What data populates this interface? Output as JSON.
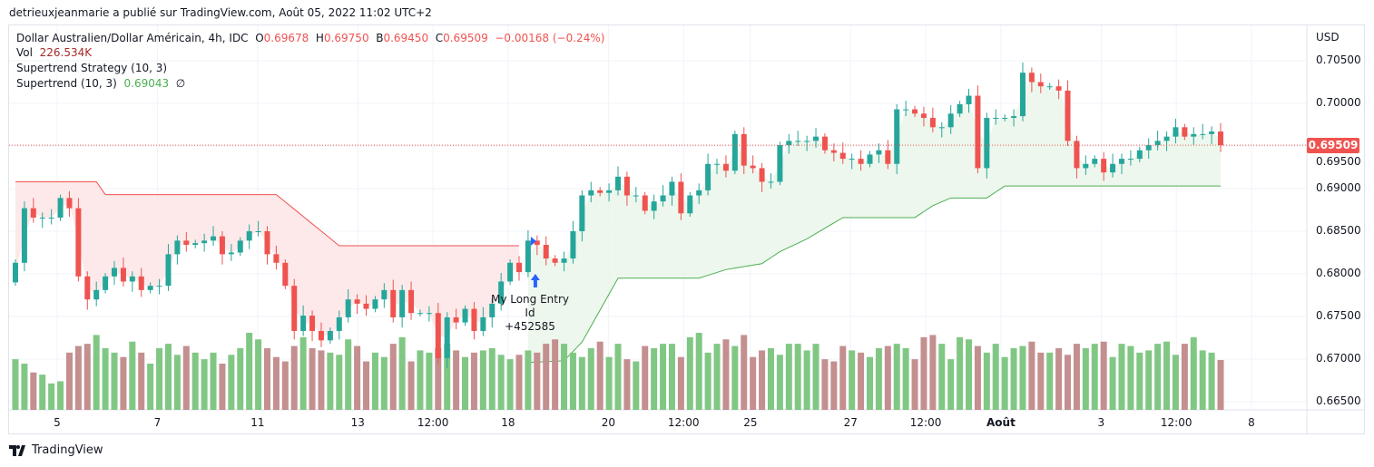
{
  "header": {
    "published": "detrieuxjeanmarie a publié sur TradingView.com, Août 05, 2022 11:02 UTC+2"
  },
  "legend": {
    "symbol": "Dollar Australien/Dollar Américain, 4h, IDC",
    "o_label": "O",
    "o": "0.69678",
    "h_label": "H",
    "h": "0.69750",
    "b_label": "B",
    "b": "0.69450",
    "c_label": "C",
    "c": "0.69509",
    "change": "−0.00168 (−0.24%)",
    "vol_label": "Vol",
    "vol": "226.534K",
    "strategy": "Supertrend Strategy (10, 3)",
    "supertrend_label": "Supertrend (10, 3)",
    "supertrend_value": "0.69043",
    "supertrend_extra": "∅"
  },
  "price_axis": {
    "currency": "USD",
    "ticks": [
      "0.70500",
      "0.70000",
      "0.69500",
      "0.69000",
      "0.68500",
      "0.68000",
      "0.67500",
      "0.67000",
      "0.66500"
    ],
    "tick_values": [
      0.705,
      0.7,
      0.695,
      0.69,
      0.685,
      0.68,
      0.675,
      0.67,
      0.665
    ],
    "last_price": "0.69509"
  },
  "time_axis": [
    {
      "label": "5",
      "index": 5
    },
    {
      "label": "7",
      "index": 17
    },
    {
      "label": "11",
      "index": 29
    },
    {
      "label": "13",
      "index": 41
    },
    {
      "label": "12:00",
      "index": 50
    },
    {
      "label": "18",
      "index": 59
    },
    {
      "label": "20",
      "index": 71
    },
    {
      "label": "12:00",
      "index": 80
    },
    {
      "label": "25",
      "index": 88
    },
    {
      "label": "27",
      "index": 100
    },
    {
      "label": "12:00",
      "index": 109
    },
    {
      "label": "Août",
      "index": 118,
      "bold": true
    },
    {
      "label": "3",
      "index": 130
    },
    {
      "label": "12:00",
      "index": 139
    },
    {
      "label": "8",
      "index": 148
    }
  ],
  "annotation": {
    "title": "My Long Entry Id",
    "value": "+452585",
    "index": 57
  },
  "branding": {
    "name": "TradingView"
  },
  "colors": {
    "up": "#26a69a",
    "down": "#ef5350",
    "vol_up": "#81c784",
    "vol_down": "#c48f8f",
    "st_up": "#4caf50",
    "st_down": "#ef5350",
    "fill_up": "#e8f5e9",
    "fill_down": "#fde4e4",
    "marker": "#2962ff"
  },
  "chart_data": {
    "type": "candlestick",
    "open_first": 0.679,
    "close": [
      0.6813,
      0.6877,
      0.6866,
      0.6866,
      0.6866,
      0.6889,
      0.6877,
      0.6797,
      0.677,
      0.6781,
      0.6797,
      0.6807,
      0.6791,
      0.6797,
      0.6781,
      0.6786,
      0.6786,
      0.6823,
      0.6839,
      0.6834,
      0.6836,
      0.6839,
      0.6844,
      0.6823,
      0.6825,
      0.6839,
      0.685,
      0.685,
      0.6823,
      0.6813,
      0.6786,
      0.6733,
      0.6751,
      0.6733,
      0.6722,
      0.6733,
      0.6749,
      0.677,
      0.6765,
      0.6759,
      0.677,
      0.6781,
      0.6749,
      0.6781,
      0.6754,
      0.6754,
      0.6754,
      0.6701,
      0.6749,
      0.6743,
      0.6759,
      0.6733,
      0.6749,
      0.6765,
      0.6791,
      0.6813,
      0.6802,
      0.6839,
      0.6834,
      0.6818,
      0.6813,
      0.6818,
      0.685,
      0.6892,
      0.6898,
      0.6895,
      0.6898,
      0.6914,
      0.6892,
      0.6892,
      0.6874,
      0.6885,
      0.6892,
      0.6908,
      0.6871,
      0.6892,
      0.6898,
      0.6929,
      0.6929,
      0.6921,
      0.6964,
      0.6927,
      0.6924,
      0.6908,
      0.6908,
      0.6951,
      0.6956,
      0.6956,
      0.6956,
      0.6961,
      0.6945,
      0.6942,
      0.6935,
      0.6935,
      0.6929,
      0.694,
      0.6945,
      0.6929,
      0.6993,
      0.6993,
      0.6988,
      0.6983,
      0.6972,
      0.6972,
      0.6988,
      0.6999,
      0.7009,
      0.6924,
      0.6983,
      0.6983,
      0.6983,
      0.6985,
      0.7036,
      0.7025,
      0.702,
      0.702,
      0.7015,
      0.6956,
      0.6924,
      0.6929,
      0.6935,
      0.6919,
      0.6929,
      0.6935,
      0.6935,
      0.6945,
      0.6951,
      0.6956,
      0.6961,
      0.6972,
      0.6961,
      0.6964,
      0.6964,
      0.6967,
      0.69509
    ],
    "volume_k": [
      230,
      210,
      170,
      160,
      120,
      130,
      260,
      290,
      300,
      340,
      280,
      260,
      240,
      310,
      260,
      210,
      280,
      300,
      250,
      290,
      260,
      230,
      260,
      210,
      250,
      280,
      350,
      320,
      280,
      240,
      220,
      290,
      330,
      280,
      270,
      260,
      250,
      320,
      290,
      220,
      260,
      240,
      300,
      330,
      220,
      270,
      260,
      280,
      300,
      270,
      240,
      260,
      270,
      280,
      250,
      230,
      250,
      270,
      260,
      300,
      320,
      300,
      260,
      240,
      280,
      310,
      240,
      300,
      230,
      220,
      290,
      280,
      300,
      300,
      240,
      330,
      350,
      260,
      300,
      320,
      290,
      340,
      240,
      270,
      280,
      250,
      300,
      300,
      270,
      300,
      230,
      220,
      290,
      270,
      260,
      240,
      280,
      290,
      300,
      280,
      230,
      330,
      340,
      300,
      230,
      330,
      320,
      290,
      260,
      300,
      240,
      280,
      290,
      310,
      260,
      260,
      280,
      250,
      300,
      280,
      300,
      310,
      240,
      300,
      290,
      260,
      270,
      300,
      310,
      250,
      300,
      330,
      270,
      260,
      226.534
    ],
    "supertrend_down": [
      [
        0,
        0.6908
      ],
      [
        9,
        0.6908
      ],
      [
        10,
        0.6893
      ],
      [
        29,
        0.6893
      ],
      [
        36,
        0.6833
      ],
      [
        56,
        0.6833
      ]
    ],
    "supertrend_up": [
      [
        57,
        0.6696
      ],
      [
        61,
        0.6698
      ],
      [
        63,
        0.672
      ],
      [
        67,
        0.6795
      ],
      [
        76,
        0.6795
      ],
      [
        79,
        0.6805
      ],
      [
        83,
        0.6812
      ],
      [
        85,
        0.6826
      ],
      [
        88,
        0.6841
      ],
      [
        92,
        0.6866
      ],
      [
        100,
        0.6866
      ],
      [
        102,
        0.688
      ],
      [
        104,
        0.6889
      ],
      [
        108,
        0.6889
      ],
      [
        110,
        0.6903
      ],
      [
        134,
        0.6903
      ]
    ],
    "ylim": [
      0.6645,
      0.7063
    ]
  }
}
